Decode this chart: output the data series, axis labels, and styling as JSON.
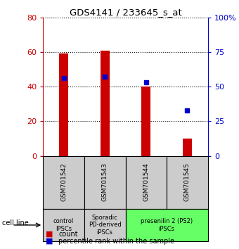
{
  "title": "GDS4141 / 233645_s_at",
  "samples": [
    "GSM701542",
    "GSM701543",
    "GSM701544",
    "GSM701545"
  ],
  "counts": [
    59,
    61,
    40,
    10
  ],
  "percentile_ranks": [
    56,
    57,
    53,
    33
  ],
  "ylim_left": [
    0,
    80
  ],
  "ylim_right": [
    0,
    100
  ],
  "yticks_left": [
    0,
    20,
    40,
    60,
    80
  ],
  "yticks_right": [
    0,
    25,
    50,
    75,
    100
  ],
  "ytick_labels_right": [
    "0",
    "25",
    "50",
    "75",
    "100%"
  ],
  "bar_color": "#cc0000",
  "dot_color": "#0000cc",
  "bar_width": 0.22,
  "groups": [
    {
      "label": "control\nIPSCs",
      "start": 0,
      "end": 1,
      "color": "#cccccc"
    },
    {
      "label": "Sporadic\nPD-derived\niPSCs",
      "start": 1,
      "end": 2,
      "color": "#cccccc"
    },
    {
      "label": "presenilin 2 (PS2)\niPSCs",
      "start": 2,
      "end": 4,
      "color": "#66ff66"
    }
  ],
  "cell_line_label": "cell line",
  "legend_count_label": "count",
  "legend_percentile_label": "percentile rank within the sample",
  "background_color": "#ffffff",
  "sample_box_bg": "#cccccc"
}
